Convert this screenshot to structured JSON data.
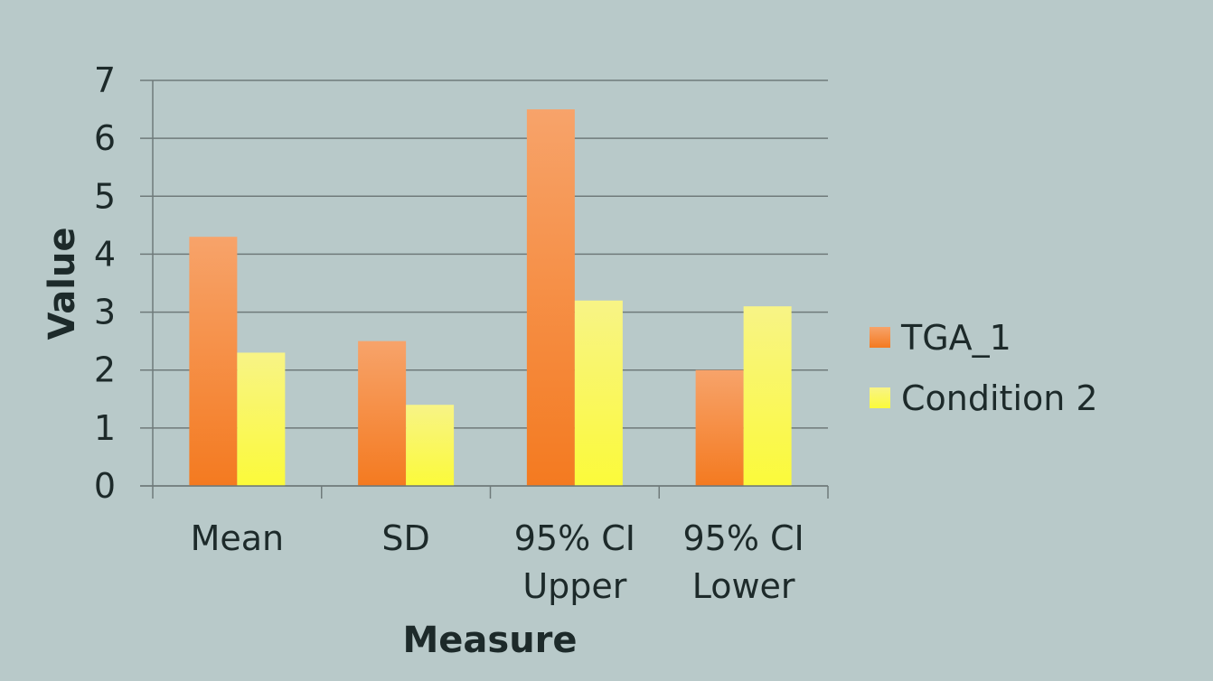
{
  "chart_data": {
    "type": "bar",
    "title": "",
    "xlabel": "Measure",
    "ylabel": "Value",
    "ylim": [
      0,
      7
    ],
    "yticks": [
      0,
      1,
      2,
      3,
      4,
      5,
      6,
      7
    ],
    "grid": true,
    "legend_position": "right",
    "categories": [
      [
        "Mean"
      ],
      [
        "SD"
      ],
      [
        "95% CI",
        "Upper"
      ],
      [
        "95% CI",
        "Lower"
      ]
    ],
    "series": [
      {
        "name": "TGA_1",
        "values": [
          4.3,
          2.5,
          6.5,
          2.0
        ],
        "color_top": "#f7a36a",
        "color_bottom": "#f47a20"
      },
      {
        "name": "Condition 2",
        "values": [
          2.3,
          1.4,
          3.2,
          3.1
        ],
        "color_top": "#f8f486",
        "color_bottom": "#fbfa3a"
      }
    ],
    "colors": {
      "background": "#b8c9c9",
      "gridline": "#6f7a7a",
      "text": "#1d2a2a"
    }
  }
}
